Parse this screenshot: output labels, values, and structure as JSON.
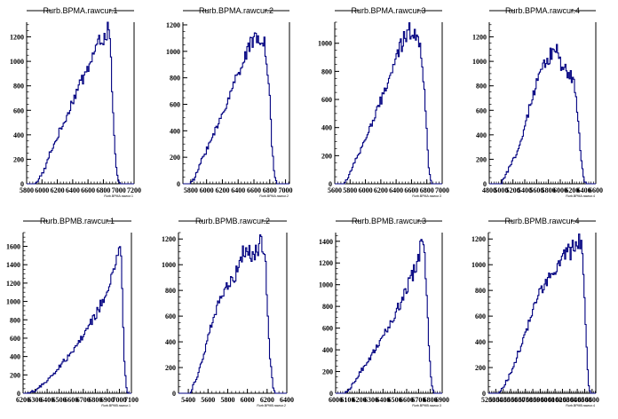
{
  "chart_data": [
    {
      "type": "histogram",
      "title": "Rurb.BPMA.rawcur.1",
      "xlabel": "Rurb.BPMA.rawcur.1",
      "xlim": [
        5800,
        7200
      ],
      "ylim": [
        0,
        1320
      ],
      "xticks": [
        5800,
        6000,
        6200,
        6400,
        6600,
        6800,
        7000,
        7200
      ],
      "xticklabels": [
        "5800",
        "6000",
        "6200",
        "6400",
        "6600",
        "6800",
        "7000",
        "7200"
      ],
      "yticks": [
        0,
        200,
        400,
        600,
        800,
        1000,
        1200
      ],
      "profile": [
        [
          5900,
          0
        ],
        [
          5930,
          15
        ],
        [
          5970,
          50
        ],
        [
          6030,
          110
        ],
        [
          6100,
          240
        ],
        [
          6200,
          380
        ],
        [
          6300,
          520
        ],
        [
          6400,
          680
        ],
        [
          6500,
          820
        ],
        [
          6600,
          950
        ],
        [
          6700,
          1100
        ],
        [
          6780,
          1190
        ],
        [
          6830,
          1220
        ],
        [
          6860,
          1260
        ],
        [
          6880,
          1200
        ],
        [
          6900,
          980
        ],
        [
          6930,
          520
        ],
        [
          6960,
          180
        ],
        [
          6990,
          30
        ],
        [
          7020,
          0
        ]
      ]
    },
    {
      "type": "histogram",
      "title": "Rurb.BPMA.rawcur.2",
      "xlabel": "Rurb.BPMA.rawcur.2",
      "xlim": [
        5700,
        7050
      ],
      "ylim": [
        0,
        1220
      ],
      "xticks": [
        5800,
        6000,
        6200,
        6400,
        6600,
        6800,
        7000
      ],
      "xticklabels": [
        "5800",
        "6000",
        "6200",
        "6400",
        "6600",
        "6800",
        "7000"
      ],
      "yticks": [
        0,
        200,
        400,
        600,
        800,
        1000,
        1200
      ],
      "profile": [
        [
          5790,
          0
        ],
        [
          5850,
          40
        ],
        [
          5950,
          200
        ],
        [
          6050,
          320
        ],
        [
          6150,
          450
        ],
        [
          6250,
          600
        ],
        [
          6350,
          760
        ],
        [
          6450,
          920
        ],
        [
          6550,
          1040
        ],
        [
          6620,
          1100
        ],
        [
          6680,
          1120
        ],
        [
          6720,
          1080
        ],
        [
          6760,
          960
        ],
        [
          6800,
          640
        ],
        [
          6830,
          260
        ],
        [
          6860,
          60
        ],
        [
          6890,
          0
        ]
      ]
    },
    {
      "type": "histogram",
      "title": "Rurb.BPMA.rawcur.3",
      "xlabel": "Rurb.BPMA.rawcur.3",
      "xlim": [
        5600,
        7000
      ],
      "ylim": [
        0,
        1150
      ],
      "xticks": [
        5600,
        5800,
        6000,
        6200,
        6400,
        6600,
        6800,
        7000
      ],
      "xticklabels": [
        "5600",
        "5800",
        "6000",
        "6200",
        "6400",
        "6600",
        "6800",
        "7000"
      ],
      "yticks": [
        0,
        200,
        400,
        600,
        800,
        1000
      ],
      "profile": [
        [
          5720,
          0
        ],
        [
          5780,
          50
        ],
        [
          5900,
          200
        ],
        [
          6000,
          320
        ],
        [
          6100,
          450
        ],
        [
          6200,
          580
        ],
        [
          6300,
          740
        ],
        [
          6400,
          880
        ],
        [
          6480,
          1000
        ],
        [
          6560,
          1080
        ],
        [
          6620,
          1110
        ],
        [
          6670,
          1070
        ],
        [
          6720,
          980
        ],
        [
          6760,
          720
        ],
        [
          6800,
          360
        ],
        [
          6830,
          80
        ],
        [
          6860,
          0
        ]
      ]
    },
    {
      "type": "histogram",
      "title": "Rurb.BPMA.rawcur.4",
      "xlabel": "Rurb.BPMA.rawcur.4",
      "xlim": [
        4800,
        6600
      ],
      "ylim": [
        0,
        1320
      ],
      "xticks": [
        4800,
        5000,
        5200,
        5400,
        5600,
        5800,
        6000,
        6200,
        6400,
        6600
      ],
      "xticklabels": [
        "4800",
        "5000",
        "5200",
        "5400",
        "5600",
        "5800",
        "6000",
        "6200",
        "6400",
        "6600"
      ],
      "yticks": [
        0,
        200,
        400,
        600,
        800,
        1000,
        1200
      ],
      "profile": [
        [
          4990,
          0
        ],
        [
          5050,
          40
        ],
        [
          5150,
          140
        ],
        [
          5250,
          230
        ],
        [
          5350,
          380
        ],
        [
          5450,
          560
        ],
        [
          5550,
          720
        ],
        [
          5650,
          880
        ],
        [
          5730,
          960
        ],
        [
          5800,
          1020
        ],
        [
          5850,
          1060
        ],
        [
          5900,
          1140
        ],
        [
          5950,
          1080
        ],
        [
          6000,
          1000
        ],
        [
          6080,
          940
        ],
        [
          6160,
          900
        ],
        [
          6230,
          820
        ],
        [
          6300,
          540
        ],
        [
          6350,
          200
        ],
        [
          6400,
          40
        ],
        [
          6430,
          0
        ]
      ]
    },
    {
      "type": "histogram",
      "title": "Rurb.BPMB.rawcur.1",
      "xlabel": "Rurb.BPMB.rawcur.1",
      "xlim": [
        6200,
        7100
      ],
      "ylim": [
        0,
        1750
      ],
      "xticks": [
        6200,
        6300,
        6400,
        6500,
        6600,
        6700,
        6800,
        6900,
        7000,
        7100
      ],
      "xticklabels": [
        "6200",
        "6300",
        "6400",
        "6500",
        "6600",
        "6700",
        "6800",
        "6900",
        "7000",
        "7100"
      ],
      "yticks": [
        0,
        200,
        400,
        600,
        800,
        1000,
        1200,
        1400,
        1600
      ],
      "profile": [
        [
          6240,
          0
        ],
        [
          6300,
          30
        ],
        [
          6400,
          130
        ],
        [
          6500,
          280
        ],
        [
          6600,
          440
        ],
        [
          6700,
          620
        ],
        [
          6800,
          840
        ],
        [
          6880,
          1060
        ],
        [
          6940,
          1250
        ],
        [
          6970,
          1400
        ],
        [
          6990,
          1560
        ],
        [
          7005,
          1680
        ],
        [
          7015,
          1500
        ],
        [
          7025,
          1000
        ],
        [
          7040,
          400
        ],
        [
          7055,
          100
        ],
        [
          7070,
          0
        ]
      ]
    },
    {
      "type": "histogram",
      "title": "Rurb.BPMB.rawcur.2",
      "xlabel": "Rurb.BPMB.rawcur.2",
      "xlim": [
        5300,
        6400
      ],
      "ylim": [
        0,
        1250
      ],
      "xticks": [
        5400,
        5600,
        5800,
        6000,
        6200,
        6400
      ],
      "xticklabels": [
        "5400",
        "5600",
        "5800",
        "6000",
        "6200",
        "6400"
      ],
      "yticks": [
        0,
        200,
        400,
        600,
        800,
        1000,
        1200
      ],
      "profile": [
        [
          5420,
          0
        ],
        [
          5450,
          60
        ],
        [
          5500,
          160
        ],
        [
          5550,
          280
        ],
        [
          5600,
          420
        ],
        [
          5650,
          560
        ],
        [
          5700,
          680
        ],
        [
          5750,
          780
        ],
        [
          5800,
          840
        ],
        [
          5850,
          880
        ],
        [
          5900,
          940
        ],
        [
          5950,
          1080
        ],
        [
          6000,
          1110
        ],
        [
          6050,
          1060
        ],
        [
          6100,
          1120
        ],
        [
          6150,
          1180
        ],
        [
          6180,
          1080
        ],
        [
          6200,
          700
        ],
        [
          6230,
          280
        ],
        [
          6260,
          50
        ],
        [
          6280,
          0
        ]
      ]
    },
    {
      "type": "histogram",
      "title": "Rurb.BPMB.rawcur.3",
      "xlabel": "Rurb.BPMB.rawcur.3",
      "xlim": [
        6000,
        6900
      ],
      "ylim": [
        0,
        1480
      ],
      "xticks": [
        6000,
        6100,
        6200,
        6300,
        6400,
        6500,
        6600,
        6700,
        6800,
        6900
      ],
      "xticklabels": [
        "6000",
        "6100",
        "6200",
        "6300",
        "6400",
        "6500",
        "6600",
        "6700",
        "6800",
        "6900"
      ],
      "yticks": [
        0,
        200,
        400,
        600,
        800,
        1000,
        1200,
        1400
      ],
      "profile": [
        [
          6080,
          0
        ],
        [
          6120,
          40
        ],
        [
          6200,
          180
        ],
        [
          6300,
          340
        ],
        [
          6400,
          520
        ],
        [
          6500,
          720
        ],
        [
          6580,
          920
        ],
        [
          6640,
          1060
        ],
        [
          6680,
          1180
        ],
        [
          6710,
          1300
        ],
        [
          6730,
          1430
        ],
        [
          6750,
          1300
        ],
        [
          6770,
          900
        ],
        [
          6790,
          380
        ],
        [
          6810,
          80
        ],
        [
          6830,
          0
        ]
      ]
    },
    {
      "type": "histogram",
      "title": "Rurb.BPMB.rawcur.4",
      "xlabel": "Rurb.BPMB.rawcur.4",
      "xlim": [
        5200,
        6650
      ],
      "ylim": [
        0,
        1250
      ],
      "xticks": [
        5200,
        5300,
        5400,
        5500,
        5600,
        5700,
        5800,
        5900,
        6000,
        6100,
        6200,
        6300,
        6400,
        6500,
        6600
      ],
      "xticklabels": [
        "5200",
        "5300",
        "5400",
        "5500",
        "5600",
        "5700",
        "5800",
        "5900",
        "6000",
        "6100",
        "6200",
        "6300",
        "6400",
        "6500",
        "6600"
      ],
      "yticks": [
        0,
        200,
        400,
        600,
        800,
        1000,
        1200
      ],
      "profile": [
        [
          5340,
          0
        ],
        [
          5400,
          40
        ],
        [
          5500,
          160
        ],
        [
          5600,
          300
        ],
        [
          5700,
          460
        ],
        [
          5800,
          640
        ],
        [
          5900,
          780
        ],
        [
          6000,
          900
        ],
        [
          6100,
          980
        ],
        [
          6200,
          1060
        ],
        [
          6300,
          1100
        ],
        [
          6380,
          1140
        ],
        [
          6430,
          1180
        ],
        [
          6460,
          1120
        ],
        [
          6490,
          860
        ],
        [
          6520,
          420
        ],
        [
          6550,
          90
        ],
        [
          6580,
          0
        ]
      ]
    }
  ]
}
